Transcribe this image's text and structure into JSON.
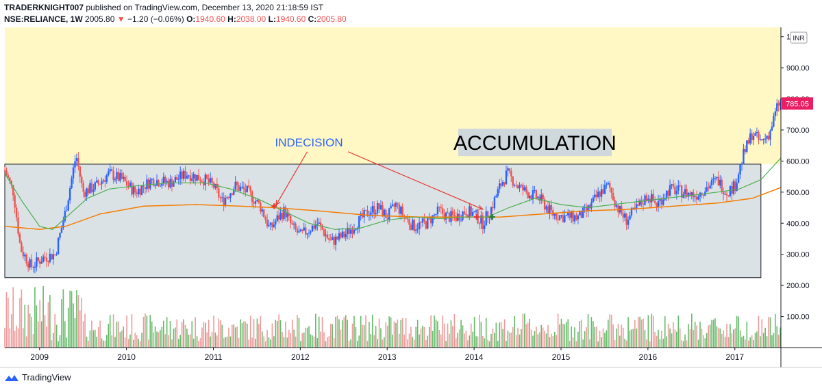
{
  "header": {
    "author": "TRADERKNIGHT007",
    "published": "published on TradingView.com, December 13, 2020 21:18:59 IST",
    "symbol": "NSE:RELIANCE, 1W",
    "last": "2005.80",
    "change_arrow": "▼",
    "change": "−1.20 (−0.06%)",
    "o_label": "O:",
    "o_value": "1940.60",
    "h_label": "H:",
    "h_value": "2038.00",
    "l_label": "L:",
    "l_value": "1940.60",
    "c_label": "C:",
    "c_value": "2005.80"
  },
  "footer": {
    "brand": "TradingView"
  },
  "colors": {
    "up": "#2962ff",
    "down": "#ef5350",
    "ma_fast": "#4caf50",
    "ma_slow": "#f57c00",
    "vol_up": "#66bb6a",
    "vol_down": "#ef9a9a",
    "box_fill": "#cfd8dc",
    "upper_bg": "#fff8c4",
    "last_price": "#e91e63"
  },
  "chart_data": {
    "type": "candlestick",
    "currency": "INR",
    "ylim": [
      0,
      1030
    ],
    "y_ticks": [
      "100.00",
      "200.00",
      "300.00",
      "400.00",
      "500.00",
      "600.00",
      "700.00",
      "800.00",
      "900.00",
      "1"
    ],
    "x_ticks": [
      {
        "label": "2009",
        "x": 2009.0
      },
      {
        "label": "2010",
        "x": 2010.0
      },
      {
        "label": "2011",
        "x": 2011.0
      },
      {
        "label": "2012",
        "x": 2012.0
      },
      {
        "label": "2013",
        "x": 2013.0
      },
      {
        "label": "2014",
        "x": 2014.0
      },
      {
        "label": "2015",
        "x": 2015.0
      },
      {
        "label": "2016",
        "x": 2016.0
      },
      {
        "label": "2017",
        "x": 2017.0
      }
    ],
    "xlim": [
      2008.6,
      2017.53
    ],
    "last_price": "785.05",
    "price_path": [
      [
        2008.6,
        570
      ],
      [
        2008.7,
        500
      ],
      [
        2008.78,
        320
      ],
      [
        2008.9,
        260
      ],
      [
        2009.05,
        290
      ],
      [
        2009.18,
        300
      ],
      [
        2009.3,
        440
      ],
      [
        2009.38,
        560
      ],
      [
        2009.42,
        620
      ],
      [
        2009.5,
        500
      ],
      [
        2009.65,
        520
      ],
      [
        2009.8,
        560
      ],
      [
        2009.95,
        540
      ],
      [
        2010.1,
        500
      ],
      [
        2010.3,
        540
      ],
      [
        2010.5,
        530
      ],
      [
        2010.7,
        560
      ],
      [
        2010.9,
        540
      ],
      [
        2011.0,
        520
      ],
      [
        2011.1,
        470
      ],
      [
        2011.25,
        520
      ],
      [
        2011.4,
        500
      ],
      [
        2011.55,
        450
      ],
      [
        2011.65,
        380
      ],
      [
        2011.75,
        420
      ],
      [
        2011.82,
        440
      ],
      [
        2011.9,
        390
      ],
      [
        2012.0,
        360
      ],
      [
        2012.2,
        400
      ],
      [
        2012.35,
        340
      ],
      [
        2012.5,
        360
      ],
      [
        2012.65,
        400
      ],
      [
        2012.8,
        440
      ],
      [
        2012.9,
        450
      ],
      [
        2013.0,
        420
      ],
      [
        2013.1,
        460
      ],
      [
        2013.2,
        420
      ],
      [
        2013.3,
        390
      ],
      [
        2013.45,
        400
      ],
      [
        2013.6,
        440
      ],
      [
        2013.7,
        420
      ],
      [
        2013.8,
        420
      ],
      [
        2013.9,
        440
      ],
      [
        2014.0,
        430
      ],
      [
        2014.1,
        400
      ],
      [
        2014.2,
        450
      ],
      [
        2014.3,
        520
      ],
      [
        2014.38,
        560
      ],
      [
        2014.5,
        520
      ],
      [
        2014.6,
        500
      ],
      [
        2014.75,
        480
      ],
      [
        2014.9,
        430
      ],
      [
        2015.05,
        420
      ],
      [
        2015.2,
        420
      ],
      [
        2015.3,
        440
      ],
      [
        2015.45,
        500
      ],
      [
        2015.55,
        520
      ],
      [
        2015.65,
        450
      ],
      [
        2015.75,
        410
      ],
      [
        2015.85,
        440
      ],
      [
        2016.0,
        490
      ],
      [
        2016.1,
        460
      ],
      [
        2016.25,
        510
      ],
      [
        2016.4,
        500
      ],
      [
        2016.55,
        490
      ],
      [
        2016.7,
        520
      ],
      [
        2016.8,
        540
      ],
      [
        2016.9,
        500
      ],
      [
        2017.0,
        520
      ],
      [
        2017.1,
        620
      ],
      [
        2017.2,
        690
      ],
      [
        2017.3,
        660
      ],
      [
        2017.4,
        690
      ],
      [
        2017.5,
        785
      ]
    ],
    "ma_fast": [
      [
        2008.6,
        560
      ],
      [
        2008.8,
        470
      ],
      [
        2009.0,
        390
      ],
      [
        2009.15,
        380
      ],
      [
        2009.35,
        430
      ],
      [
        2009.55,
        480
      ],
      [
        2009.8,
        510
      ],
      [
        2010.1,
        520
      ],
      [
        2010.5,
        530
      ],
      [
        2010.9,
        530
      ],
      [
        2011.2,
        510
      ],
      [
        2011.5,
        480
      ],
      [
        2011.8,
        440
      ],
      [
        2012.1,
        400
      ],
      [
        2012.4,
        380
      ],
      [
        2012.7,
        385
      ],
      [
        2013.0,
        410
      ],
      [
        2013.3,
        420
      ],
      [
        2013.6,
        415
      ],
      [
        2013.9,
        420
      ],
      [
        2014.15,
        420
      ],
      [
        2014.4,
        450
      ],
      [
        2014.7,
        480
      ],
      [
        2015.0,
        460
      ],
      [
        2015.3,
        450
      ],
      [
        2015.6,
        460
      ],
      [
        2015.9,
        470
      ],
      [
        2016.2,
        480
      ],
      [
        2016.5,
        490
      ],
      [
        2016.8,
        500
      ],
      [
        2017.05,
        510
      ],
      [
        2017.3,
        540
      ],
      [
        2017.53,
        610
      ]
    ],
    "ma_slow": [
      [
        2008.6,
        390
      ],
      [
        2009.0,
        380
      ],
      [
        2009.3,
        390
      ],
      [
        2009.7,
        430
      ],
      [
        2010.2,
        455
      ],
      [
        2010.8,
        460
      ],
      [
        2011.3,
        455
      ],
      [
        2011.7,
        450
      ],
      [
        2012.2,
        440
      ],
      [
        2012.8,
        425
      ],
      [
        2013.4,
        420
      ],
      [
        2013.9,
        420
      ],
      [
        2014.3,
        420
      ],
      [
        2014.8,
        430
      ],
      [
        2015.3,
        440
      ],
      [
        2015.8,
        445
      ],
      [
        2016.3,
        455
      ],
      [
        2016.8,
        465
      ],
      [
        2017.2,
        480
      ],
      [
        2017.53,
        515
      ]
    ],
    "box": {
      "x0": 2008.6,
      "x1": 2017.3,
      "y0": 225,
      "y1": 590
    },
    "crosses": [
      {
        "x": 2011.7,
        "y": 455,
        "color": "red"
      },
      {
        "x": 2014.03,
        "y": 420,
        "color": "red"
      },
      {
        "x": 2014.21,
        "y": 420,
        "color": "green"
      }
    ],
    "annotations": [
      {
        "text": "INDECISION",
        "x": 2012.1,
        "y": 660
      },
      {
        "text": "ACCUMULATION",
        "x": 2014.7,
        "y": 660
      }
    ],
    "arrows": [
      {
        "from": [
          2012.08,
          630
        ],
        "to": [
          2011.72,
          458
        ]
      },
      {
        "from": [
          2012.55,
          630
        ],
        "to": [
          2014.1,
          445
        ]
      }
    ]
  }
}
